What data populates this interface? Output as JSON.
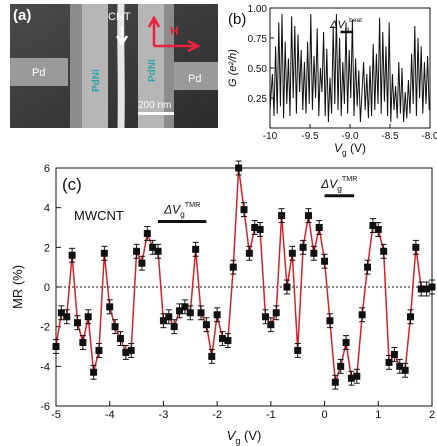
{
  "colors": {
    "sem_background": "#3a3a3a",
    "sem_wire": "#c9c9c9",
    "pdni_label": "#2aa6a6",
    "h_arrow": "#e8213c",
    "mr_line": "#d2232a",
    "mr_marker": "#111111",
    "gb_line": "#111111"
  },
  "panel_a": {
    "panel_label": "(a)",
    "cnt_label": "CNT",
    "h_label": "H",
    "pd_left": "Pd",
    "pd_right": "Pd",
    "pdni_left": "PdNi",
    "pdni_right": "PdNi",
    "scalebar_label": "200 nm",
    "icons": [
      "cnt-arrow-icon",
      "h-field-arrow-icon"
    ]
  },
  "chart_data": [
    {
      "id": "b",
      "type": "line",
      "panel_label": "(b)",
      "xlabel": "V_g (V)",
      "ylabel": "G (e²/h)",
      "xlim": [
        -10,
        -8
      ],
      "ylim": [
        0,
        1
      ],
      "xticks": [
        -10,
        -9.5,
        -9.0,
        -8.5,
        -8.0
      ],
      "xtick_labels": [
        "-10",
        "-9.5",
        "-9.0",
        "-8.5",
        "-8.0"
      ],
      "yticks": [
        0.25,
        0.5,
        0.75,
        1.0
      ],
      "ytick_labels": [
        "0.25",
        "0.50",
        "0.75",
        "1.00"
      ],
      "annotation": "ΔV_g^beat",
      "annotation_bar_x": [
        -9.12,
        -8.96
      ],
      "x": [
        -10.0,
        -9.97,
        -9.95,
        -9.93,
        -9.91,
        -9.89,
        -9.87,
        -9.85,
        -9.83,
        -9.81,
        -9.79,
        -9.77,
        -9.75,
        -9.73,
        -9.71,
        -9.69,
        -9.67,
        -9.65,
        -9.63,
        -9.61,
        -9.59,
        -9.57,
        -9.55,
        -9.53,
        -9.51,
        -9.49,
        -9.47,
        -9.45,
        -9.43,
        -9.41,
        -9.39,
        -9.37,
        -9.35,
        -9.33,
        -9.31,
        -9.29,
        -9.27,
        -9.25,
        -9.23,
        -9.21,
        -9.19,
        -9.17,
        -9.15,
        -9.13,
        -9.11,
        -9.09,
        -9.07,
        -9.05,
        -9.03,
        -9.01,
        -8.99,
        -8.97,
        -8.95,
        -8.93,
        -8.91,
        -8.89,
        -8.87,
        -8.85,
        -8.83,
        -8.81,
        -8.79,
        -8.77,
        -8.75,
        -8.73,
        -8.71,
        -8.69,
        -8.67,
        -8.65,
        -8.63,
        -8.61,
        -8.59,
        -8.57,
        -8.55,
        -8.53,
        -8.51,
        -8.49,
        -8.47,
        -8.45,
        -8.43,
        -8.41,
        -8.39,
        -8.37,
        -8.35,
        -8.33,
        -8.31,
        -8.29,
        -8.27,
        -8.25,
        -8.23,
        -8.21,
        -8.19,
        -8.17,
        -8.15,
        -8.13,
        -8.11,
        -8.09,
        -8.07,
        -8.05,
        -8.03,
        -8.01
      ],
      "y": [
        0.15,
        0.45,
        0.1,
        0.68,
        0.12,
        0.88,
        0.18,
        0.95,
        0.08,
        0.72,
        0.2,
        0.58,
        0.1,
        0.93,
        0.25,
        0.85,
        0.12,
        0.78,
        0.3,
        0.65,
        0.15,
        0.55,
        0.12,
        0.72,
        0.2,
        0.95,
        0.15,
        0.6,
        0.25,
        0.83,
        0.1,
        0.5,
        0.3,
        0.8,
        0.1,
        0.66,
        0.05,
        0.42,
        0.12,
        0.85,
        0.2,
        0.95,
        0.15,
        0.75,
        0.1,
        0.55,
        0.2,
        0.88,
        0.12,
        0.65,
        0.25,
        0.9,
        0.1,
        0.58,
        0.18,
        0.48,
        0.05,
        0.3,
        0.55,
        0.15,
        0.45,
        0.08,
        0.52,
        0.1,
        0.7,
        0.15,
        0.62,
        0.2,
        0.92,
        0.12,
        0.8,
        0.22,
        0.68,
        0.1,
        0.88,
        0.05,
        0.45,
        0.15,
        0.35,
        0.08,
        0.55,
        0.12,
        0.5,
        0.05,
        0.3,
        0.08,
        0.4,
        0.12,
        0.62,
        0.2,
        0.85,
        0.1,
        0.75,
        0.25,
        0.68,
        0.12,
        0.55,
        0.2,
        0.6,
        0.15
      ]
    },
    {
      "id": "c",
      "type": "line",
      "panel_label": "(c)",
      "series_label": "MWCNT",
      "xlabel": "V_g (V)",
      "ylabel": "MR (%)",
      "xlim": [
        -5,
        2
      ],
      "ylim": [
        -6,
        6
      ],
      "xticks": [
        -5,
        -4,
        -3,
        -2,
        -1,
        0,
        1,
        2
      ],
      "xtick_labels": [
        "-5",
        "-4",
        "-3",
        "-2",
        "-1",
        "0",
        "1",
        "2"
      ],
      "yticks": [
        -6,
        -4,
        -2,
        0,
        2,
        4,
        6
      ],
      "ytick_labels": [
        "-6",
        "-4",
        "-2",
        "0",
        "2",
        "4",
        "6"
      ],
      "zero_line": true,
      "error_bar": 0.35,
      "annotations": [
        {
          "text": "ΔV_g^TMR",
          "bar_x": [
            -3.1,
            -2.2
          ],
          "bar_y": 3.3
        },
        {
          "text": "ΔV_g^TMR",
          "bar_x": [
            0.0,
            0.55
          ],
          "bar_y": 4.6
        }
      ],
      "x": [
        -5.0,
        -4.9,
        -4.8,
        -4.7,
        -4.6,
        -4.5,
        -4.4,
        -4.3,
        -4.2,
        -4.1,
        -4.0,
        -3.9,
        -3.8,
        -3.7,
        -3.6,
        -3.5,
        -3.4,
        -3.3,
        -3.2,
        -3.1,
        -3.0,
        -2.9,
        -2.8,
        -2.7,
        -2.6,
        -2.5,
        -2.4,
        -2.3,
        -2.2,
        -2.1,
        -2.0,
        -1.9,
        -1.8,
        -1.7,
        -1.6,
        -1.5,
        -1.4,
        -1.3,
        -1.2,
        -1.1,
        -1.0,
        -0.9,
        -0.8,
        -0.7,
        -0.6,
        -0.5,
        -0.4,
        -0.3,
        -0.2,
        -0.1,
        0.0,
        0.1,
        0.2,
        0.3,
        0.4,
        0.5,
        0.6,
        0.7,
        0.8,
        0.9,
        1.0,
        1.1,
        1.2,
        1.3,
        1.4,
        1.5,
        1.6,
        1.7,
        1.8,
        1.9,
        2.0
      ],
      "y": [
        -3.0,
        -1.3,
        -1.5,
        1.6,
        -1.8,
        -2.8,
        -1.5,
        -4.3,
        -3.2,
        1.7,
        -1.0,
        -2.0,
        -2.6,
        -3.3,
        -3.2,
        1.8,
        1.2,
        2.7,
        2.0,
        1.8,
        -1.7,
        -1.5,
        -2.0,
        -1.2,
        -1.0,
        -1.3,
        1.9,
        -1.3,
        -1.9,
        -3.5,
        -1.4,
        -2.6,
        -2.7,
        1.0,
        6.0,
        3.9,
        1.7,
        3.0,
        2.9,
        -1.5,
        -1.9,
        -1.3,
        3.6,
        0.0,
        1.7,
        -3.2,
        2.0,
        3.6,
        1.7,
        3.0,
        1.3,
        -1.7,
        -4.8,
        -4.0,
        -2.8,
        -4.6,
        -4.5,
        -1.4,
        1.0,
        3.1,
        2.9,
        1.8,
        -3.8,
        -3.4,
        -4.0,
        -4.2,
        -1.5,
        2.0,
        -0.1,
        -0.1,
        0.0
      ]
    }
  ]
}
